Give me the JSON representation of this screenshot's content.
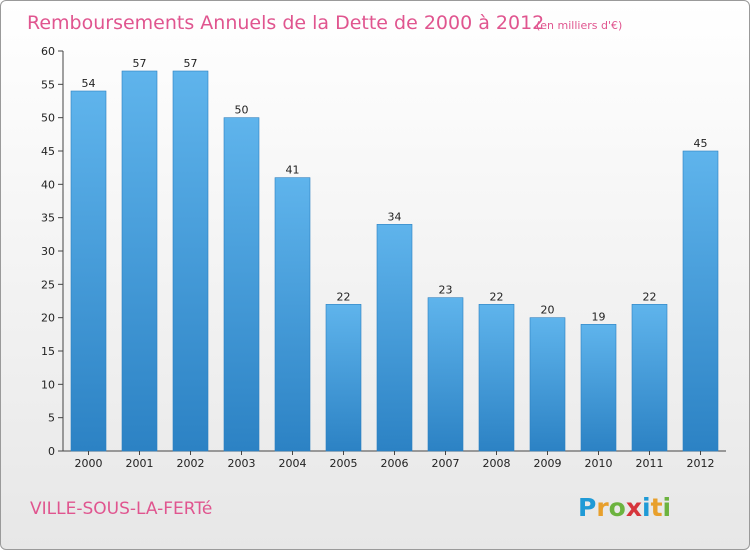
{
  "title": "Remboursements Annuels de la Dette de 2000 à 2012",
  "subtitle": "(en milliers d'€)",
  "commune": "VILLE-SOUS-LA-FERTé",
  "logo": {
    "letters": [
      "P",
      "r",
      "o",
      "x",
      "i",
      "t",
      "i"
    ],
    "colors": [
      "#1f9ad6",
      "#e8a02c",
      "#6cb33f",
      "#d6353c",
      "#1f9ad6",
      "#e8a02c",
      "#6cb33f"
    ]
  },
  "colors": {
    "bar_light": "#5fb4ec",
    "bar_dark": "#2c82c4",
    "accent": "#e0558f"
  },
  "chart_data": {
    "type": "bar",
    "title": "Remboursements Annuels de la Dette de 2000 à 2012",
    "subtitle": "(en milliers d'€)",
    "xlabel": "",
    "ylabel": "",
    "categories": [
      "2000",
      "2001",
      "2002",
      "2003",
      "2004",
      "2005",
      "2006",
      "2007",
      "2008",
      "2009",
      "2010",
      "2011",
      "2012"
    ],
    "values": [
      54,
      57,
      57,
      50,
      41,
      22,
      34,
      23,
      22,
      20,
      19,
      22,
      45
    ],
    "ylim": [
      0,
      60
    ],
    "yticks": [
      0,
      5,
      10,
      15,
      20,
      25,
      30,
      35,
      40,
      45,
      50,
      55,
      60
    ],
    "grid": false,
    "legend": "none"
  }
}
